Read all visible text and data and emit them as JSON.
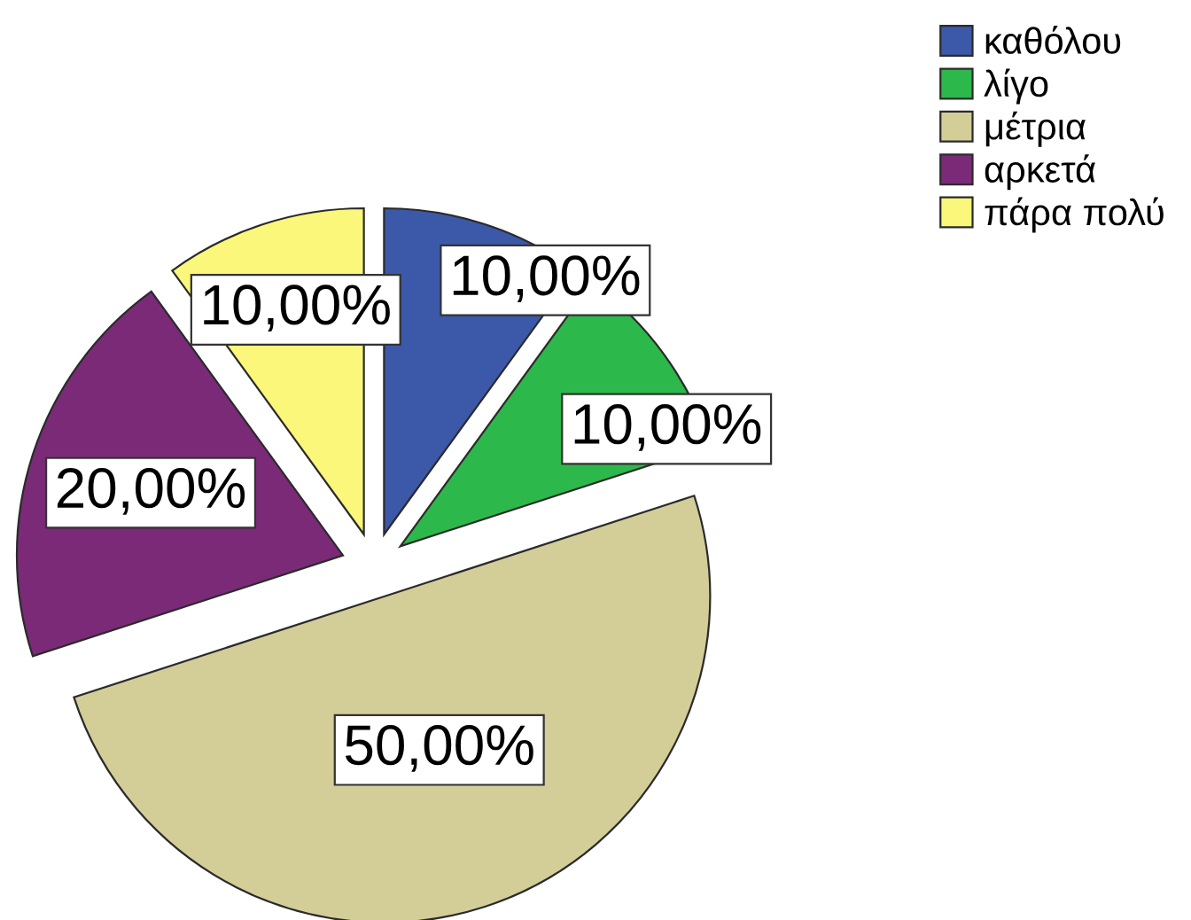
{
  "chart_data": {
    "type": "pie",
    "categories": [
      "καθόλου",
      "λίγο",
      "μέτρια",
      "αρκετά",
      "πάρα πολύ"
    ],
    "values": [
      10,
      10,
      50,
      20,
      10
    ],
    "colors": [
      "#3c58a8",
      "#2db84b",
      "#d3ce98",
      "#7b2a78",
      "#faf77a"
    ],
    "value_labels": [
      "10,00%",
      "10,00%",
      "50,00%",
      "20,00%",
      "10,00%"
    ],
    "legend": "top right"
  }
}
